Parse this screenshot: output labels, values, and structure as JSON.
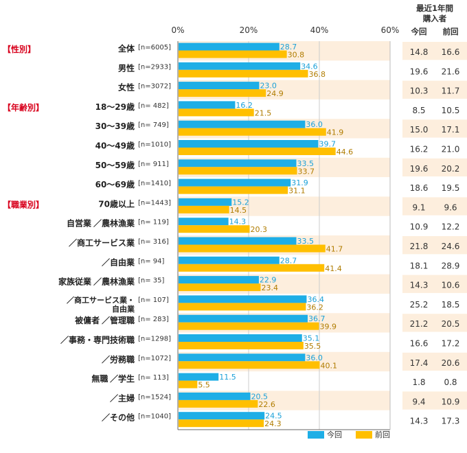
{
  "chart_data": {
    "type": "bar",
    "orientation": "horizontal",
    "xlim": [
      0,
      60
    ],
    "ticks": [
      "0%",
      "20%",
      "40%",
      "60%"
    ],
    "tick_values": [
      0,
      20,
      40,
      60
    ],
    "legend_placement": "bottom-right",
    "series": [
      {
        "name": "今回",
        "color": "#1eaee6"
      },
      {
        "name": "前回",
        "color": "#ffbf00"
      }
    ],
    "table_header": {
      "title_line1": "最近1年間",
      "title_line2": "購入者",
      "col_current": "今回",
      "col_previous": "前回"
    },
    "sections": [
      {
        "label": "【性別】",
        "row": 0
      },
      {
        "label": "【年齢別】",
        "row": 3
      },
      {
        "label": "【職業別】",
        "row": 8
      }
    ],
    "rows": [
      {
        "prefix": "",
        "label": "全体",
        "n": "[n=6005]",
        "current": 28.7,
        "previous": 30.8,
        "cur_text": "28.7",
        "prev_text": "30.8",
        "tbl_cur": "14.8",
        "tbl_prev": "16.6"
      },
      {
        "prefix": "",
        "label": "男性",
        "n": "[n=2933]",
        "current": 34.6,
        "previous": 36.8,
        "cur_text": "34.6",
        "prev_text": "36.8",
        "tbl_cur": "19.6",
        "tbl_prev": "21.6"
      },
      {
        "prefix": "",
        "label": "女性",
        "n": "[n=3072]",
        "current": 23.0,
        "previous": 24.9,
        "cur_text": "23.0",
        "prev_text": "24.9",
        "tbl_cur": "10.3",
        "tbl_prev": "11.7"
      },
      {
        "prefix": "",
        "label": "18〜29歳",
        "n": "[n=  482]",
        "current": 16.2,
        "previous": 21.5,
        "cur_text": "16.2",
        "prev_text": "21.5",
        "tbl_cur": "8.5",
        "tbl_prev": "10.5"
      },
      {
        "prefix": "",
        "label": "30〜39歳",
        "n": "[n=  749]",
        "current": 36.0,
        "previous": 41.9,
        "cur_text": "36.0",
        "prev_text": "41.9",
        "tbl_cur": "15.0",
        "tbl_prev": "17.1"
      },
      {
        "prefix": "",
        "label": "40〜49歳",
        "n": "[n=1010]",
        "current": 39.7,
        "previous": 44.6,
        "cur_text": "39.7",
        "prev_text": "44.6",
        "tbl_cur": "16.2",
        "tbl_prev": "21.0"
      },
      {
        "prefix": "",
        "label": "50〜59歳",
        "n": "[n=  911]",
        "current": 33.5,
        "previous": 33.7,
        "cur_text": "33.5",
        "prev_text": "33.7",
        "tbl_cur": "19.6",
        "tbl_prev": "20.2"
      },
      {
        "prefix": "",
        "label": "60〜69歳",
        "n": "[n=1410]",
        "current": 31.9,
        "previous": 31.1,
        "cur_text": "31.9",
        "prev_text": "31.1",
        "tbl_cur": "18.6",
        "tbl_prev": "19.5"
      },
      {
        "prefix": "",
        "label": "70歳以上",
        "n": "[n=1443]",
        "current": 15.2,
        "previous": 14.5,
        "cur_text": "15.2",
        "prev_text": "14.5",
        "tbl_cur": "9.1",
        "tbl_prev": "9.6"
      },
      {
        "prefix": "自営業",
        "label": "／農林漁業",
        "n": "[n=  119]",
        "current": 14.3,
        "previous": 20.3,
        "cur_text": "14.3",
        "prev_text": "20.3",
        "tbl_cur": "10.9",
        "tbl_prev": "12.2"
      },
      {
        "prefix": "",
        "label": "／商工サービス業",
        "n": "[n=  316]",
        "current": 33.5,
        "previous": 41.7,
        "cur_text": "33.5",
        "prev_text": "41.7",
        "tbl_cur": "21.8",
        "tbl_prev": "24.6"
      },
      {
        "prefix": "",
        "label": "／自由業",
        "n": "[n=    94]",
        "current": 28.7,
        "previous": 41.4,
        "cur_text": "28.7",
        "prev_text": "41.4",
        "tbl_cur": "18.1",
        "tbl_prev": "28.9"
      },
      {
        "prefix": "家族従業",
        "label": "／農林漁業",
        "n": "[n=    35]",
        "current": 22.9,
        "previous": 23.4,
        "cur_text": "22.9",
        "prev_text": "23.4",
        "tbl_cur": "14.3",
        "tbl_prev": "10.6"
      },
      {
        "prefix": "",
        "label": "／商工サービス業・",
        "label2": "自由業",
        "n": "[n=  107]",
        "current": 36.4,
        "previous": 36.2,
        "cur_text": "36.4",
        "prev_text": "36.2",
        "tbl_cur": "25.2",
        "tbl_prev": "18.5"
      },
      {
        "prefix": "被傭者",
        "label": "／管理職",
        "n": "[n=  283]",
        "current": 36.7,
        "previous": 39.9,
        "cur_text": "36.7",
        "prev_text": "39.9",
        "tbl_cur": "21.2",
        "tbl_prev": "20.5"
      },
      {
        "prefix": "",
        "label": "／事務・専門技術職",
        "n": "[n=1298]",
        "current": 35.1,
        "previous": 35.5,
        "cur_text": "35.1",
        "prev_text": "35.5",
        "tbl_cur": "16.6",
        "tbl_prev": "17.2"
      },
      {
        "prefix": "",
        "label": "／労務職",
        "n": "[n=1072]",
        "current": 36.0,
        "previous": 40.1,
        "cur_text": "36.0",
        "prev_text": "40.1",
        "tbl_cur": "17.4",
        "tbl_prev": "20.6"
      },
      {
        "prefix": "無職",
        "label": "／学生",
        "n": "[n=  113]",
        "current": 11.5,
        "previous": 5.5,
        "cur_text": "11.5",
        "prev_text": "5.5",
        "tbl_cur": "1.8",
        "tbl_prev": "0.8"
      },
      {
        "prefix": "",
        "label": "／主婦",
        "n": "[n=1524]",
        "current": 20.5,
        "previous": 22.6,
        "cur_text": "20.5",
        "prev_text": "22.6",
        "tbl_cur": "9.4",
        "tbl_prev": "10.9"
      },
      {
        "prefix": "",
        "label": "／その他",
        "n": "[n=1040]",
        "current": 24.5,
        "previous": 24.3,
        "cur_text": "24.5",
        "prev_text": "24.3",
        "tbl_cur": "14.3",
        "tbl_prev": "17.3"
      }
    ],
    "colors": {
      "current": "#1eaee6",
      "previous": "#ffbf00",
      "stripe": "#fdeedd",
      "section": "#d8001c"
    }
  }
}
